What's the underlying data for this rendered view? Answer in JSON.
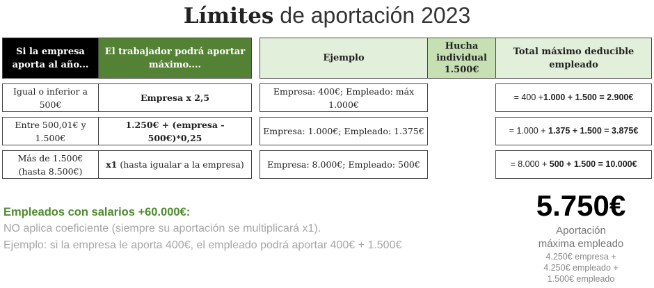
{
  "title": {
    "bold": "Límites",
    "rest": " de aportación 2023"
  },
  "headers": {
    "company": "Si la empresa aporta al año...",
    "worker": "El trabajador podrá aportar máximo....",
    "example": "Ejemplo",
    "hucha": "Hucha individual 1.500€",
    "total": "Total máximo deducible empleado"
  },
  "rows": [
    {
      "company": "Igual o inferior a 500€",
      "worker_bold": "Empresa x 2,5",
      "worker_rest": "",
      "example": "Empresa: 400€; Empleado: máx 1.000€",
      "total_plain": "= 400 +",
      "total_bold": "1.000 + 1.500 = 2.900€"
    },
    {
      "company": "Entre 500,01€ y 1.500€",
      "worker_bold": "1.250€ + (empresa - 500€)*0,25",
      "worker_rest": "",
      "example": "Empresa: 1.000€; Empleado: 1.375€",
      "total_plain": "= 1.000 + ",
      "total_bold": "1.375 + 1.500 = 3.875€"
    },
    {
      "company": "Más de 1.500€ (hasta 8.500€)",
      "worker_bold": "x1",
      "worker_rest": " (hasta igualar a la empresa)",
      "example": "Empresa: 8.000€; Empleado: 500€",
      "total_plain": "= 8.000 + ",
      "total_bold": "500 + 1.500 = 10.000€"
    }
  ],
  "note": {
    "heading": "Empleados con salarios +60.000€:",
    "line1": "NO aplica coeficiente (siempre su aportación se multiplicará x1).",
    "line2": "Ejemplo: si la empresa le aporta 400€, el empleado podrá aportar 400€ + 1.500€"
  },
  "summary": {
    "amount": "5.750€",
    "label1": "Aportación",
    "label2": "máxima empleado",
    "d1": "4.250€ empresa +",
    "d2": "4.250€ empleado +",
    "d3": "1.500€ empleado"
  },
  "colors": {
    "green": "#548235",
    "light_green": "#e2efda",
    "note_green": "#4e8a2e",
    "gray_text": "#a6a6a6"
  }
}
